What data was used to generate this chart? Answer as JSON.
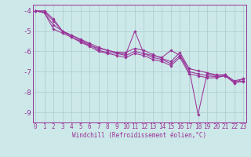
{
  "xlabel": "Windchill (Refroidissement éolien,°C)",
  "line_color": "#993399",
  "bg_color": "#cce8e8",
  "grid_color": "#aacccc",
  "spine_color": "#993399",
  "xlim": [
    -0.3,
    23.3
  ],
  "ylim": [
    -9.5,
    -3.7
  ],
  "xticks": [
    0,
    1,
    2,
    3,
    4,
    5,
    6,
    7,
    8,
    9,
    10,
    11,
    12,
    13,
    14,
    15,
    16,
    17,
    18,
    19,
    20,
    21,
    22,
    23
  ],
  "yticks": [
    -9,
    -8,
    -7,
    -6,
    -5,
    -4
  ],
  "s1": [
    -4.0,
    -4.0,
    -4.4,
    -5.0,
    -5.3,
    -5.5,
    -5.7,
    -5.85,
    -5.95,
    -6.05,
    -6.15,
    -5.0,
    -6.1,
    -6.2,
    -6.3,
    -5.95,
    -6.2,
    -6.85,
    -9.1,
    -7.1,
    -7.2,
    -7.15,
    -7.55,
    -7.35
  ],
  "s2": [
    -4.0,
    -4.05,
    -4.5,
    -5.0,
    -5.2,
    -5.4,
    -5.6,
    -5.8,
    -5.95,
    -6.05,
    -6.05,
    -5.85,
    -5.95,
    -6.15,
    -6.35,
    -6.5,
    -6.05,
    -6.85,
    -6.95,
    -7.05,
    -7.15,
    -7.15,
    -7.45,
    -7.35
  ],
  "s3": [
    -4.0,
    -4.1,
    -4.7,
    -5.0,
    -5.2,
    -5.45,
    -5.65,
    -5.95,
    -6.05,
    -6.1,
    -6.2,
    -6.0,
    -6.1,
    -6.3,
    -6.4,
    -6.6,
    -6.2,
    -7.0,
    -7.1,
    -7.2,
    -7.25,
    -7.2,
    -7.55,
    -7.45
  ],
  "s4": [
    -4.0,
    -4.1,
    -4.9,
    -5.1,
    -5.3,
    -5.55,
    -5.75,
    -6.0,
    -6.1,
    -6.2,
    -6.3,
    -6.1,
    -6.2,
    -6.4,
    -6.5,
    -6.7,
    -6.3,
    -7.1,
    -7.2,
    -7.3,
    -7.3,
    -7.2,
    -7.5,
    -7.5
  ],
  "xlabel_fontsize": 5.5,
  "tick_fontsize": 5.5,
  "ytick_fontsize": 6.5
}
